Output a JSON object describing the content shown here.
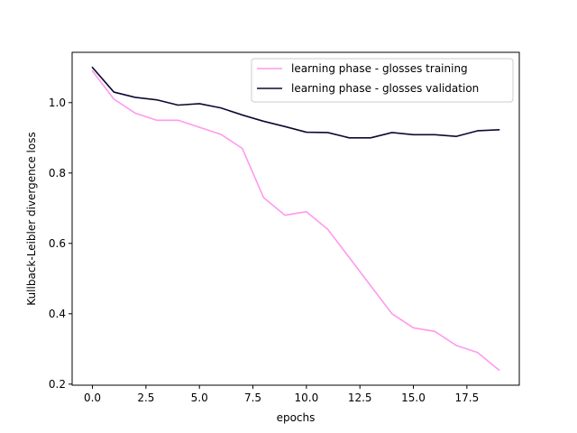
{
  "chart_data": {
    "type": "line",
    "title": "",
    "xlabel": "epochs",
    "ylabel": "Kullback-Leibler divergence loss",
    "xlim": [
      -0.95,
      19.95
    ],
    "ylim": [
      0.197,
      1.143
    ],
    "xticks": [
      0.0,
      2.5,
      5.0,
      7.5,
      10.0,
      12.5,
      15.0,
      17.5
    ],
    "xtick_labels": [
      "0.0",
      "2.5",
      "5.0",
      "7.5",
      "10.0",
      "12.5",
      "15.0",
      "17.5"
    ],
    "yticks": [
      0.2,
      0.4,
      0.6,
      0.8,
      1.0
    ],
    "ytick_labels": [
      "0.2",
      "0.4",
      "0.6",
      "0.8",
      "1.0"
    ],
    "grid": false,
    "legend_position": "top-right",
    "x": [
      0,
      1,
      2,
      3,
      4,
      5,
      6,
      7,
      8,
      9,
      10,
      11,
      12,
      13,
      14,
      15,
      16,
      17,
      18,
      19
    ],
    "series": [
      {
        "name": "learning phase - glosses training",
        "color": "#ff99ee",
        "values": [
          1.09,
          1.01,
          0.97,
          0.95,
          0.95,
          0.93,
          0.91,
          0.87,
          0.73,
          0.68,
          0.69,
          0.64,
          0.56,
          0.48,
          0.4,
          0.36,
          0.35,
          0.31,
          0.29,
          0.24
        ]
      },
      {
        "name": "learning phase - glosses validation",
        "color": "#0a0a33",
        "values": [
          1.1,
          1.03,
          1.015,
          1.008,
          0.993,
          0.997,
          0.985,
          0.965,
          0.947,
          0.932,
          0.916,
          0.915,
          0.9,
          0.9,
          0.915,
          0.909,
          0.909,
          0.904,
          0.92,
          0.923
        ]
      }
    ]
  }
}
